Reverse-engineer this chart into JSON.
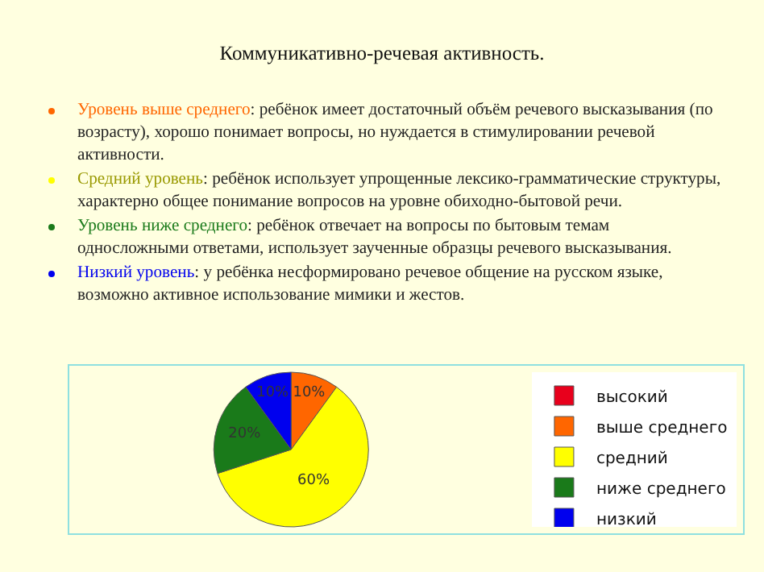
{
  "chart_data": {
    "type": "pie",
    "title": "Коммуникативно-речевая активность.",
    "annotations": [
      "Уровень выше среднего: ребёнок имеет достаточный объём речевого высказывания (по возрасту), хорошо   понимает вопросы, но нуждается в стимулировании речевой активности.",
      "Средний уровень: ребёнок использует упрощенные лексико-грамматические структуры, характерно общее понимание вопросов на уровне обиходно-бытовой речи.",
      "Уровень ниже среднего: ребёнок отвечает на вопросы по бытовым темам односложными ответами, использует заученные образцы речевого высказывания.",
      "Низкий уровень: у ребёнка несформировано речевое общение на русском языке, возможно активное использование мимики и жестов."
    ],
    "categories": [
      "высокий",
      "выше среднего",
      "средний",
      "ниже среднего",
      "низкий"
    ],
    "values": [
      0,
      10,
      60,
      20,
      10
    ],
    "value_labels": [
      null,
      "10%",
      "60%",
      "20%",
      "10%"
    ],
    "colors": [
      "#e8001c",
      "#ff6600",
      "#ffff00",
      "#1a7a1a",
      "#0000ee"
    ],
    "legend": "right"
  }
}
